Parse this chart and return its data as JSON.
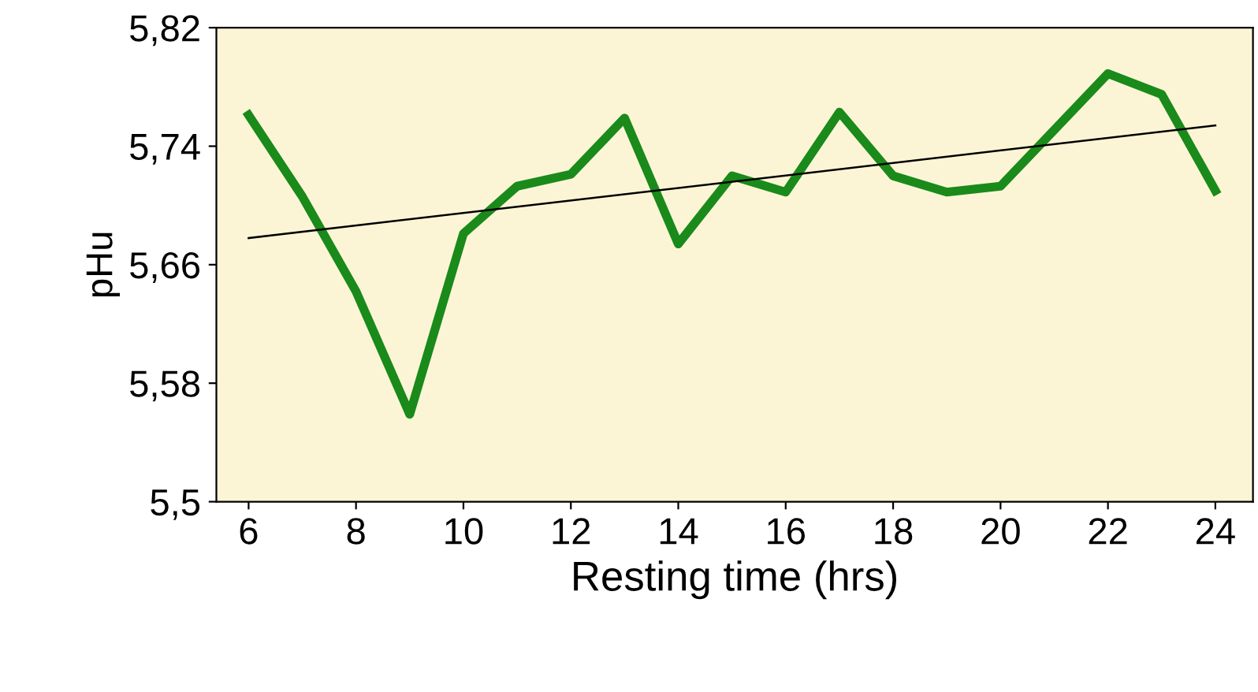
{
  "chart_data": {
    "type": "line",
    "xlabel": "Resting time (hrs)",
    "ylabel": "pHu",
    "x": [
      6,
      7,
      8,
      9,
      10,
      11,
      12,
      13,
      14,
      15,
      16,
      17,
      18,
      19,
      20,
      21,
      22,
      23,
      24
    ],
    "series": [
      {
        "color": "#1a8a1a",
        "values": [
          5.761,
          5.706,
          5.642,
          5.559,
          5.681,
          5.713,
          5.721,
          5.759,
          5.674,
          5.72,
          5.709,
          5.763,
          5.72,
          5.709,
          5.713,
          5.751,
          5.789,
          5.775,
          5.71
        ]
      },
      {
        "type": "line",
        "color": "#000000",
        "x": [
          6,
          24
        ],
        "values": [
          5.678,
          5.754
        ]
      }
    ],
    "xlim": [
      5.4,
      24.7
    ],
    "xticks": [
      6,
      8,
      10,
      12,
      14,
      16,
      18,
      20,
      22,
      24
    ],
    "ylim": [
      5.5,
      5.82
    ],
    "yticks": [
      {
        "value": 5.5,
        "label": "5,5"
      },
      {
        "value": 5.58,
        "label": "5,58"
      },
      {
        "value": 5.66,
        "label": "5,66"
      },
      {
        "value": 5.74,
        "label": "5,74"
      },
      {
        "value": 5.82,
        "label": "5,82"
      }
    ],
    "grid": false,
    "legend": false,
    "marker": "none",
    "line_style": "solid"
  }
}
